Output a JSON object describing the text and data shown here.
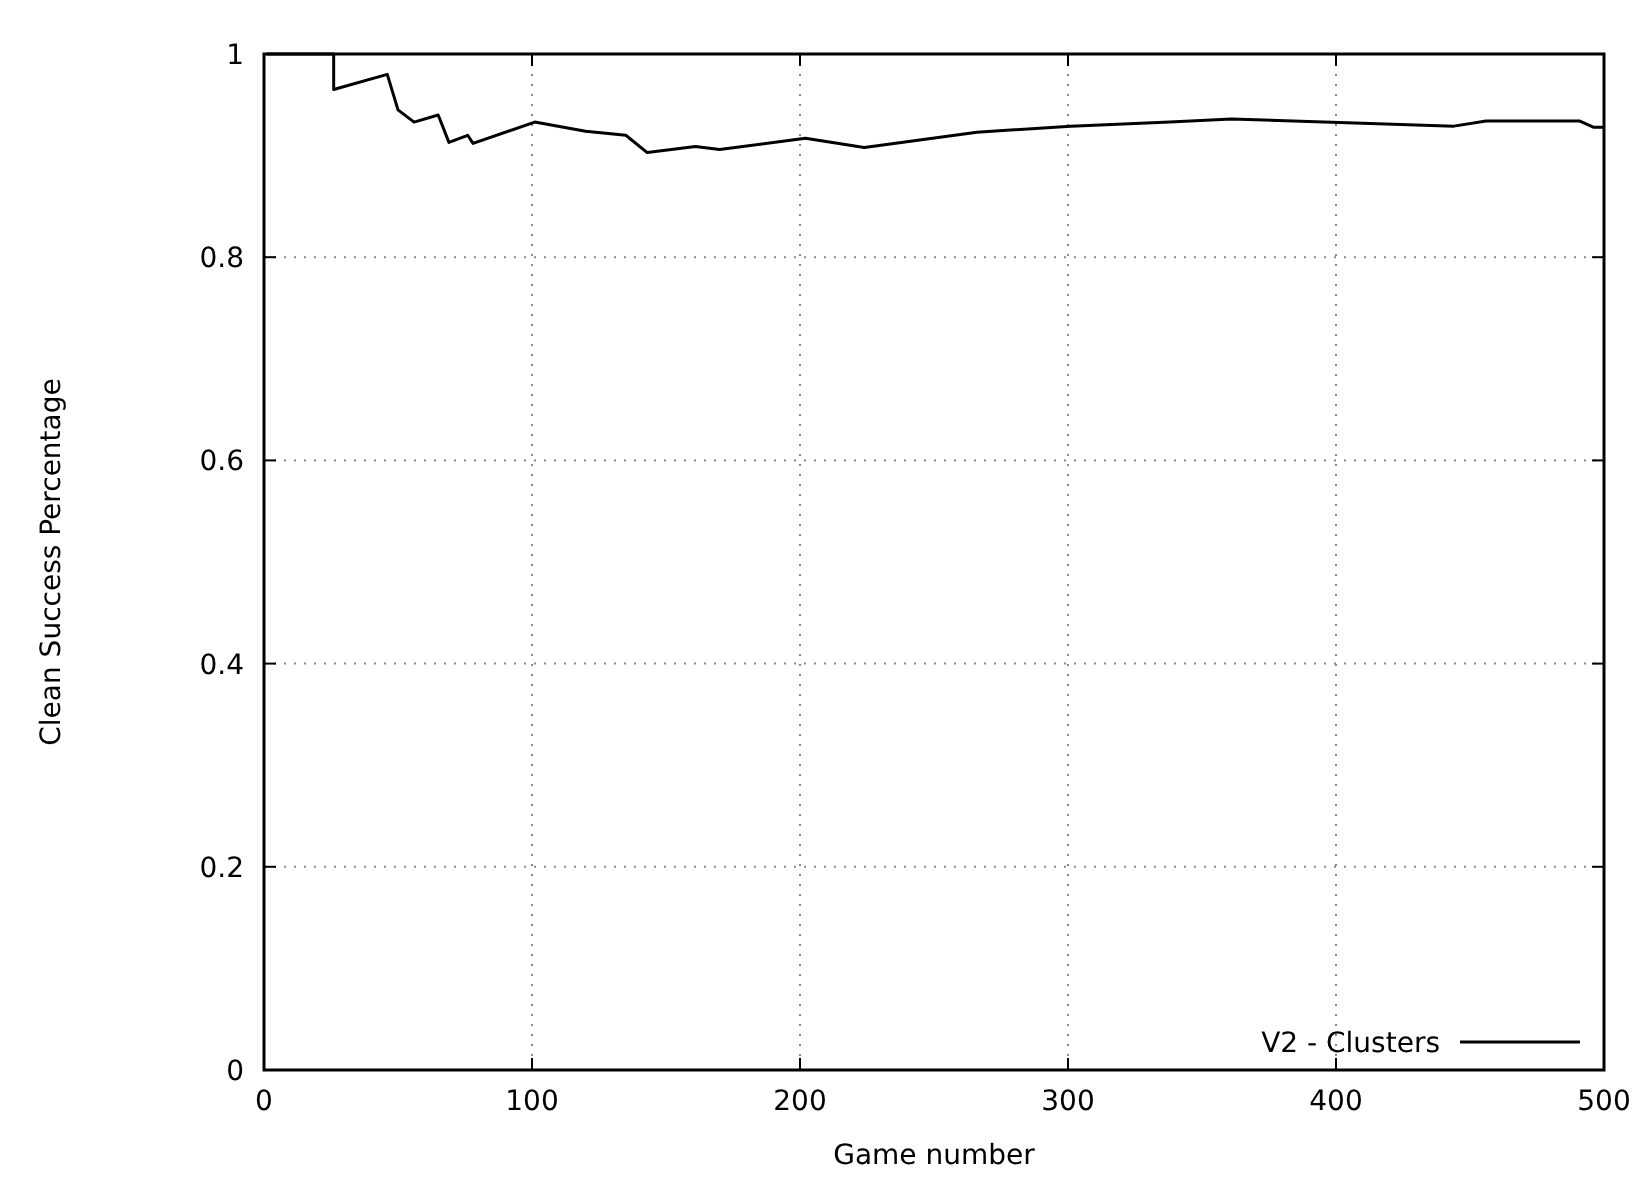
{
  "chart_data": {
    "type": "line",
    "xlabel": "Game number",
    "ylabel": "Clean Success Percentage",
    "xlim": [
      0,
      500
    ],
    "ylim": [
      0,
      1
    ],
    "xticks": [
      0,
      100,
      200,
      300,
      400,
      500
    ],
    "yticks": [
      0,
      0.2,
      0.4,
      0.6,
      0.8,
      1
    ],
    "grid": true,
    "legend": "bottom right",
    "line_style": "solid",
    "marker": "none",
    "series": [
      {
        "name": "V2 - Clusters",
        "color": "#000000",
        "x": [
          1,
          26,
          26,
          46,
          50,
          56,
          65,
          69,
          76,
          78,
          101,
          120,
          135,
          143,
          161,
          170,
          202,
          224,
          266,
          301,
          338,
          361,
          407,
          444,
          456,
          491,
          496,
          500
        ],
        "values": [
          1,
          1,
          0.965,
          0.98,
          0.945,
          0.933,
          0.94,
          0.913,
          0.92,
          0.912,
          0.933,
          0.924,
          0.92,
          0.903,
          0.909,
          0.906,
          0.917,
          0.908,
          0.923,
          0.929,
          0.933,
          0.936,
          0.932,
          0.929,
          0.934,
          0.934,
          0.928,
          0.928
        ]
      }
    ]
  }
}
